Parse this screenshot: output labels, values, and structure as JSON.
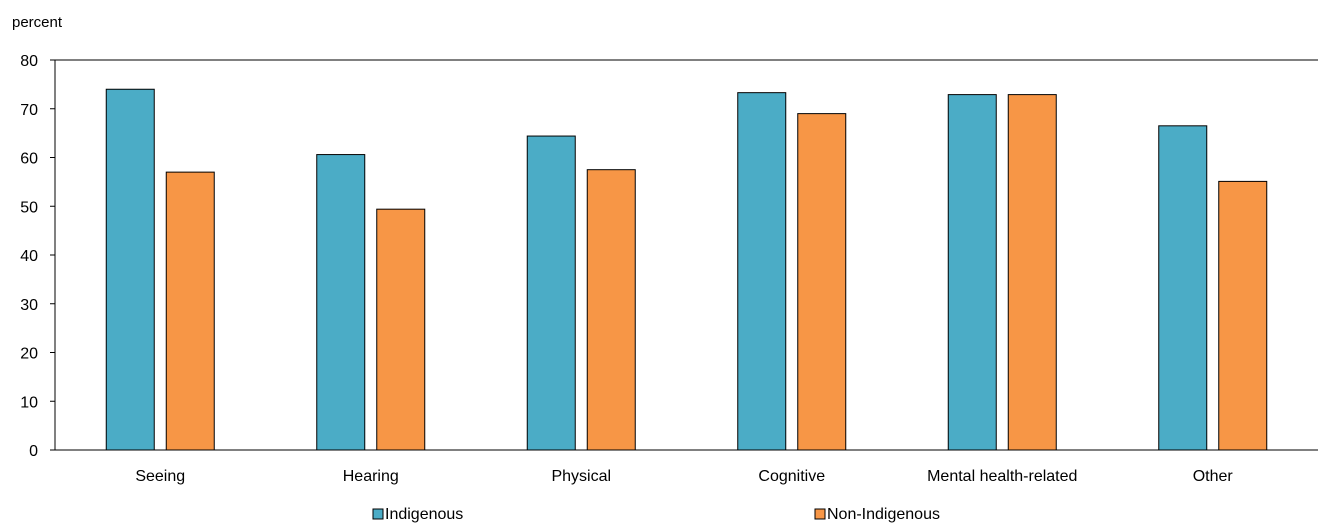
{
  "chart_data": {
    "type": "bar",
    "ylabel": "percent",
    "xlabel": "",
    "ylim": [
      0,
      80
    ],
    "yticks": [
      0,
      10,
      20,
      30,
      40,
      50,
      60,
      70,
      80
    ],
    "categories": [
      "Seeing",
      "Hearing",
      "Physical",
      "Cognitive",
      "Mental health-related",
      "Other"
    ],
    "series": [
      {
        "name": "Indigenous",
        "color": "#4BACC6",
        "values": [
          74,
          60.6,
          64.4,
          73.3,
          72.9,
          66.5
        ]
      },
      {
        "name": "Non-Indigenous",
        "color": "#F79646",
        "values": [
          57,
          49.4,
          57.5,
          69,
          72.9,
          55.1
        ]
      }
    ],
    "grid": false,
    "legend_position": "bottom"
  }
}
